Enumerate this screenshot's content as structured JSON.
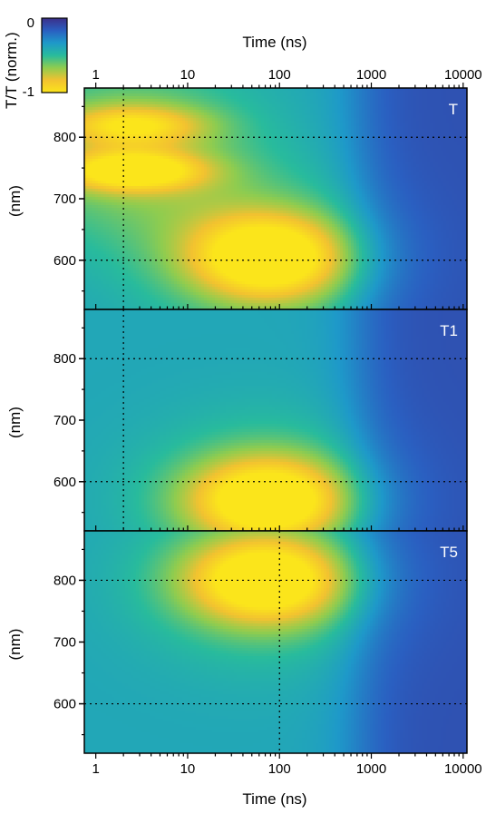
{
  "colorbar": {
    "title": "T/T (norm.)",
    "ticks": [
      {
        "value": 0,
        "label": "0"
      },
      {
        "value": -1,
        "label": "-1"
      }
    ],
    "colormap": [
      "#3b2f8a",
      "#2a5fc1",
      "#1e99c9",
      "#28bb9c",
      "#8fcc4f",
      "#f2c230",
      "#fbe51b"
    ]
  },
  "chart_data": [
    {
      "type": "heatmap",
      "label": "T",
      "xlabel": "Time (ns)",
      "ylabel": "(nm)",
      "xscale": "log",
      "xlim": [
        0.75,
        11000
      ],
      "ylim": [
        520,
        880
      ],
      "xticks": [
        {
          "value": 1,
          "label": "1"
        },
        {
          "value": 10,
          "label": "10"
        },
        {
          "value": 100,
          "label": "100"
        },
        {
          "value": 1000,
          "label": "1000"
        },
        {
          "value": 10000,
          "label": "10000"
        }
      ],
      "yticks": [
        {
          "value": 600,
          "label": "600"
        },
        {
          "value": 700,
          "label": "700"
        },
        {
          "value": 800,
          "label": "800"
        }
      ],
      "gridlines": {
        "x": [
          2
        ],
        "y": [
          600,
          800
        ]
      },
      "features": [
        {
          "t": 75,
          "wl": 605,
          "amp": 1.0
        },
        {
          "t": 2.5,
          "wl": 745,
          "amp": 0.85
        },
        {
          "t": 2.5,
          "wl": 820,
          "amp": 0.6
        }
      ]
    },
    {
      "type": "heatmap",
      "label": "T1",
      "xlabel": "Time (ns)",
      "ylabel": "(nm)",
      "xscale": "log",
      "xlim": [
        0.75,
        11000
      ],
      "ylim": [
        520,
        880
      ],
      "xticks": [
        {
          "value": 1,
          "label": "1"
        },
        {
          "value": 10,
          "label": "10"
        },
        {
          "value": 100,
          "label": "100"
        },
        {
          "value": 1000,
          "label": "1000"
        },
        {
          "value": 10000,
          "label": "10000"
        }
      ],
      "yticks": [
        {
          "value": 600,
          "label": "600"
        },
        {
          "value": 700,
          "label": "700"
        },
        {
          "value": 800,
          "label": "800"
        }
      ],
      "gridlines": {
        "x": [
          2
        ],
        "y": [
          600,
          800
        ]
      },
      "features": [
        {
          "t": 75,
          "wl": 570,
          "amp": 1.0
        }
      ]
    },
    {
      "type": "heatmap",
      "label": "T5",
      "xlabel": "Time (ns)",
      "ylabel": "(nm)",
      "xscale": "log",
      "xlim": [
        0.75,
        11000
      ],
      "ylim": [
        520,
        880
      ],
      "xticks": [
        {
          "value": 1,
          "label": "1"
        },
        {
          "value": 10,
          "label": "10"
        },
        {
          "value": 100,
          "label": "100"
        },
        {
          "value": 1000,
          "label": "1000"
        },
        {
          "value": 10000,
          "label": "10000"
        }
      ],
      "yticks": [
        {
          "value": 600,
          "label": "600"
        },
        {
          "value": 700,
          "label": "700"
        },
        {
          "value": 800,
          "label": "800"
        }
      ],
      "gridlines": {
        "x": [
          100
        ],
        "y": [
          600,
          800
        ]
      },
      "features": [
        {
          "t": 70,
          "wl": 800,
          "amp": 1.0
        }
      ]
    }
  ]
}
